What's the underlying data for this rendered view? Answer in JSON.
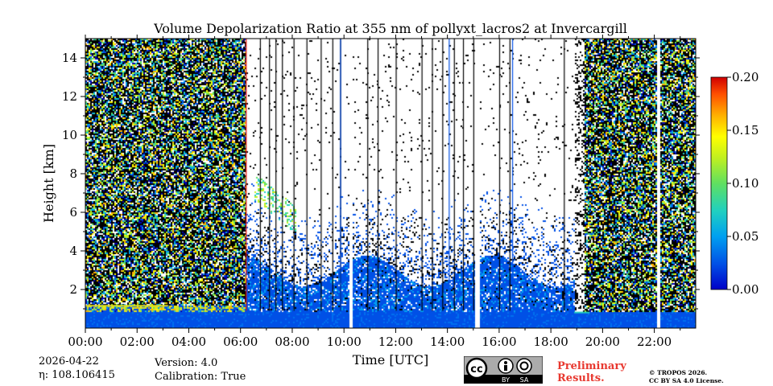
{
  "chart_data": {
    "type": "heatmap",
    "title": "Volume Depolarization Ratio at 355 nm of pollyxt_lacros2 at Invercargill",
    "xlabel": "Time [UTC]",
    "ylabel": "Height [km]",
    "x_tick_labels": [
      "00:00",
      "02:00",
      "04:00",
      "06:00",
      "08:00",
      "10:00",
      "12:00",
      "14:00",
      "16:00",
      "18:00",
      "20:00",
      "22:00"
    ],
    "x_tick_values_h": [
      0,
      2,
      4,
      6,
      8,
      10,
      12,
      14,
      16,
      18,
      20,
      22
    ],
    "xlim_h": [
      0,
      23.6
    ],
    "y_tick_labels": [
      "2",
      "4",
      "6",
      "8",
      "10",
      "12",
      "14"
    ],
    "y_tick_values_km": [
      2,
      4,
      6,
      8,
      10,
      12,
      14
    ],
    "ylim_km": [
      0,
      15
    ],
    "colorbar": {
      "min": 0.0,
      "max": 0.2,
      "tick_labels": [
        "0.00",
        "0.05",
        "0.10",
        "0.15",
        "0.20"
      ],
      "tick_values": [
        0.0,
        0.05,
        0.1,
        0.15,
        0.2
      ],
      "colormap": [
        "#0000b4",
        "#0050e6",
        "#00a0f0",
        "#20d0c0",
        "#60e060",
        "#c0f020",
        "#ffff00",
        "#ffb000",
        "#ff6000",
        "#e81000",
        "#b40000"
      ]
    },
    "data_gaps_h": [
      [
        10.15,
        10.3
      ],
      [
        15.05,
        15.2
      ],
      [
        22.05,
        22.2
      ]
    ],
    "no_signal_h": [
      [
        18.9,
        19.3
      ]
    ],
    "vertical_profile_lines_h": [
      6.75,
      7.1,
      7.35,
      7.6,
      8.05,
      8.55,
      9.1,
      9.55,
      9.85,
      10.9,
      11.3,
      12.0,
      13.0,
      13.4,
      13.8,
      14.25,
      14.6,
      15.0,
      16.0,
      16.4,
      18.5
    ],
    "layers": [
      {
        "name": "boundary layer",
        "start_h": 0,
        "end_h": 6.2,
        "top_km": 1.2
      },
      {
        "name": "aerosol plume",
        "start_h": 6.5,
        "end_h": 8.1,
        "top_km": 7.5,
        "bottom_km": 5.3
      }
    ]
  },
  "footer": {
    "date": "2026-04-22",
    "eta_label": "η: 108.106415",
    "version": "Version: 4.0",
    "calibration": "Calibration: True",
    "preliminary_line1": "Preliminary",
    "preliminary_line2": "Results.",
    "copyright_line1": "© TROPOS 2026.",
    "copyright_line2": "CC BY SA 4.0 License.",
    "cc_text": "cc",
    "by_text": "BY",
    "sa_text": "SA"
  }
}
